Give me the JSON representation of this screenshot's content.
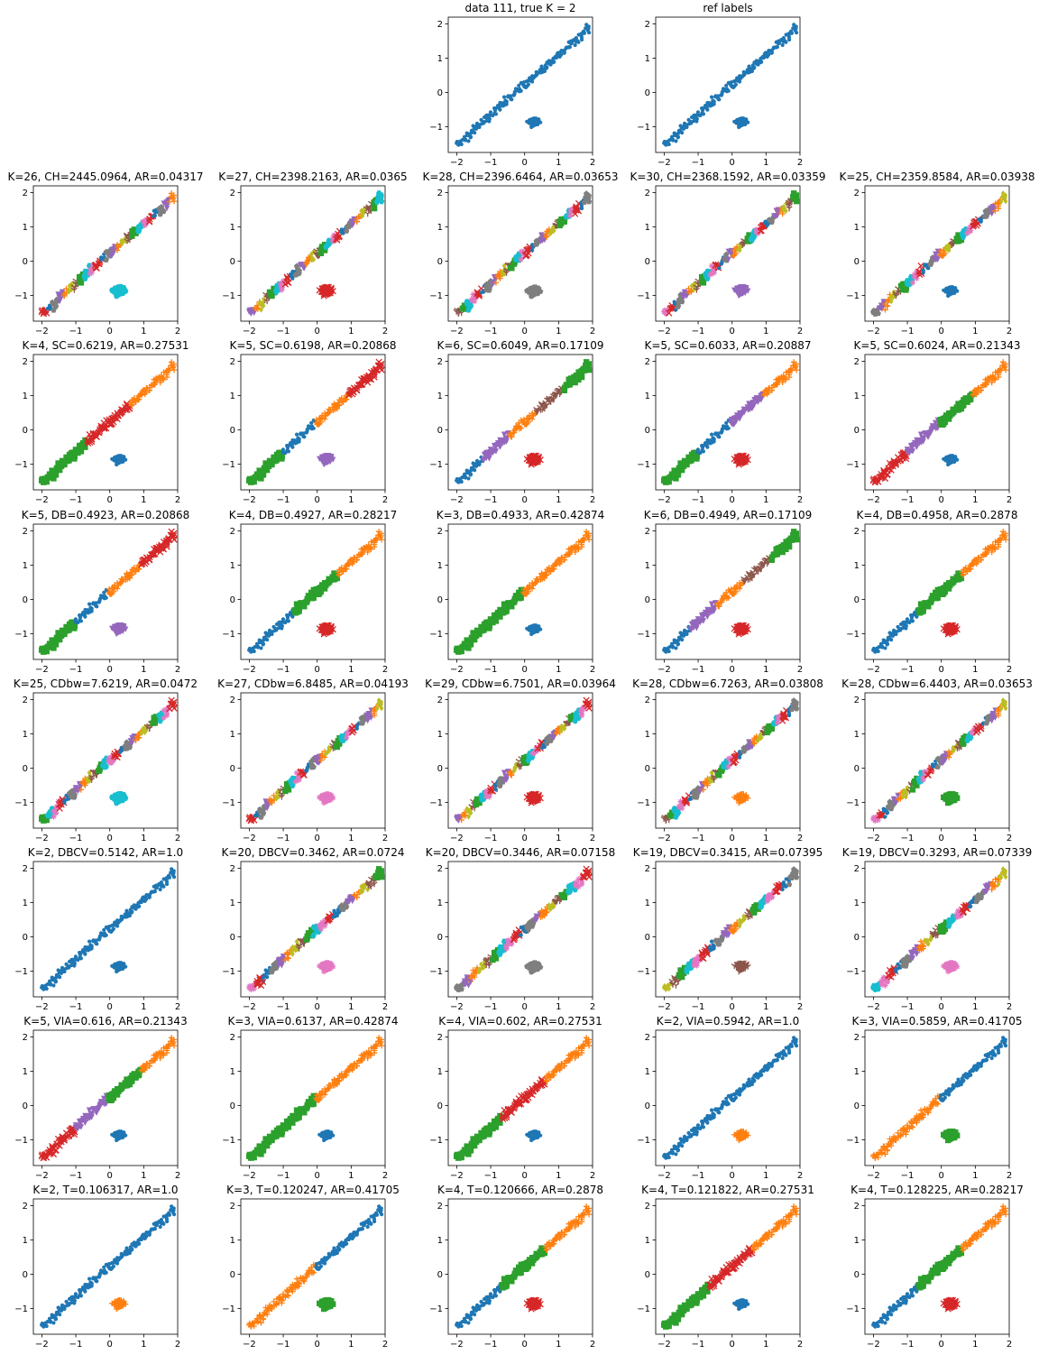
{
  "palette": [
    "#1f77b4",
    "#ff7f0e",
    "#2ca02c",
    "#d62728",
    "#9467bd",
    "#8c564b",
    "#e377c2",
    "#7f7f7f",
    "#bcbd22",
    "#17becf"
  ],
  "markers": [
    "circle",
    "plus",
    "square",
    "x",
    "triangle",
    "tri",
    "star",
    "pentagon",
    "diamond",
    "hexagon"
  ],
  "axes": {
    "xlim": [
      -2.25,
      2.0
    ],
    "ylim": [
      -1.75,
      2.2
    ],
    "xticks": [
      -2,
      -1,
      0,
      1,
      2
    ],
    "yticks": [
      -1,
      0,
      1,
      2
    ],
    "xtick_labels": [
      "−2",
      "−1",
      "0",
      "1",
      "2"
    ],
    "ytick_labels": [
      "−1",
      "0",
      "1",
      "2"
    ]
  },
  "chart_data": [
    {
      "type": "scatter",
      "row": 0,
      "col": 2,
      "title": "data 111, true K = 2",
      "k": 1,
      "mode": "single"
    },
    {
      "type": "scatter",
      "row": 0,
      "col": 3,
      "title": "ref labels",
      "k": 1,
      "mode": "single"
    },
    {
      "type": "scatter",
      "row": 1,
      "col": 0,
      "title": "K=26, CH=2445.0964, AR=0.04317",
      "k": 26,
      "mode": "many"
    },
    {
      "type": "scatter",
      "row": 1,
      "col": 1,
      "title": "K=27, CH=2398.2163, AR=0.0365",
      "k": 27,
      "mode": "many"
    },
    {
      "type": "scatter",
      "row": 1,
      "col": 2,
      "title": "K=28, CH=2396.6464, AR=0.03653",
      "k": 28,
      "mode": "many"
    },
    {
      "type": "scatter",
      "row": 1,
      "col": 3,
      "title": "K=30, CH=2368.1592, AR=0.03359",
      "k": 30,
      "mode": "many"
    },
    {
      "type": "scatter",
      "row": 1,
      "col": 4,
      "title": "K=25, CH=2359.8584, AR=0.03938",
      "k": 25,
      "mode": "many"
    },
    {
      "type": "scatter",
      "row": 2,
      "col": 0,
      "title": "K=4, SC=0.6219, AR=0.27531",
      "k": 4,
      "mode": "seg",
      "segs": [
        2,
        3,
        1
      ],
      "blob": 0
    },
    {
      "type": "scatter",
      "row": 2,
      "col": 1,
      "title": "K=5, SC=0.6198, AR=0.20868",
      "k": 5,
      "mode": "seg",
      "segs": [
        2,
        0,
        1,
        3
      ],
      "blob": 4
    },
    {
      "type": "scatter",
      "row": 2,
      "col": 2,
      "title": "K=6, SC=0.6049, AR=0.17109",
      "k": 6,
      "mode": "seg",
      "segs": [
        0,
        4,
        1,
        5,
        2
      ],
      "blob": 3
    },
    {
      "type": "scatter",
      "row": 2,
      "col": 3,
      "title": "K=5, SC=0.6033, AR=0.20887",
      "k": 5,
      "mode": "seg",
      "segs": [
        2,
        0,
        4,
        1
      ],
      "blob": 3
    },
    {
      "type": "scatter",
      "row": 2,
      "col": 4,
      "title": "K=5, SC=0.6024, AR=0.21343",
      "k": 5,
      "mode": "seg",
      "segs": [
        3,
        4,
        2,
        1
      ],
      "blob": 0
    },
    {
      "type": "scatter",
      "row": 3,
      "col": 0,
      "title": "K=5, DB=0.4923, AR=0.20868",
      "k": 5,
      "mode": "seg",
      "segs": [
        2,
        0,
        1,
        3
      ],
      "blob": 4
    },
    {
      "type": "scatter",
      "row": 3,
      "col": 1,
      "title": "K=4, DB=0.4927, AR=0.28217",
      "k": 4,
      "mode": "seg",
      "segs": [
        0,
        2,
        1
      ],
      "blob": 3
    },
    {
      "type": "scatter",
      "row": 3,
      "col": 2,
      "title": "K=3, DB=0.4933, AR=0.42874",
      "k": 3,
      "mode": "seg",
      "segs": [
        2,
        1
      ],
      "blob": 0
    },
    {
      "type": "scatter",
      "row": 3,
      "col": 3,
      "title": "K=6, DB=0.4949, AR=0.17109",
      "k": 6,
      "mode": "seg",
      "segs": [
        0,
        4,
        1,
        5,
        2
      ],
      "blob": 3
    },
    {
      "type": "scatter",
      "row": 3,
      "col": 4,
      "title": "K=4, DB=0.4958, AR=0.2878",
      "k": 4,
      "mode": "seg",
      "segs": [
        0,
        2,
        1
      ],
      "blob": 3
    },
    {
      "type": "scatter",
      "row": 4,
      "col": 0,
      "title": "K=25, CDbw=7.6219, AR=0.0472",
      "k": 25,
      "mode": "many"
    },
    {
      "type": "scatter",
      "row": 4,
      "col": 1,
      "title": "K=27, CDbw=6.8485, AR=0.04193",
      "k": 27,
      "mode": "many"
    },
    {
      "type": "scatter",
      "row": 4,
      "col": 2,
      "title": "K=29, CDbw=6.7501, AR=0.03964",
      "k": 29,
      "mode": "many"
    },
    {
      "type": "scatter",
      "row": 4,
      "col": 3,
      "title": "K=28, CDbw=6.7263, AR=0.03808",
      "k": 28,
      "mode": "many"
    },
    {
      "type": "scatter",
      "row": 4,
      "col": 4,
      "title": "K=28, CDbw=6.4403, AR=0.03653",
      "k": 28,
      "mode": "many"
    },
    {
      "type": "scatter",
      "row": 5,
      "col": 0,
      "title": "K=2, DBCV=0.5142, AR=1.0",
      "k": 2,
      "mode": "single"
    },
    {
      "type": "scatter",
      "row": 5,
      "col": 1,
      "title": "K=20, DBCV=0.3462, AR=0.0724",
      "k": 20,
      "mode": "many"
    },
    {
      "type": "scatter",
      "row": 5,
      "col": 2,
      "title": "K=20, DBCV=0.3446, AR=0.07158",
      "k": 20,
      "mode": "many"
    },
    {
      "type": "scatter",
      "row": 5,
      "col": 3,
      "title": "K=19, DBCV=0.3415, AR=0.07395",
      "k": 19,
      "mode": "many"
    },
    {
      "type": "scatter",
      "row": 5,
      "col": 4,
      "title": "K=19, DBCV=0.3293, AR=0.07339",
      "k": 19,
      "mode": "many"
    },
    {
      "type": "scatter",
      "row": 6,
      "col": 0,
      "title": "K=5, VIA=0.616, AR=0.21343",
      "k": 5,
      "mode": "seg",
      "segs": [
        3,
        4,
        2,
        1
      ],
      "blob": 0
    },
    {
      "type": "scatter",
      "row": 6,
      "col": 1,
      "title": "K=3, VIA=0.6137, AR=0.42874",
      "k": 3,
      "mode": "seg",
      "segs": [
        2,
        1
      ],
      "blob": 0
    },
    {
      "type": "scatter",
      "row": 6,
      "col": 2,
      "title": "K=4, VIA=0.602, AR=0.27531",
      "k": 4,
      "mode": "seg",
      "segs": [
        2,
        3,
        1
      ],
      "blob": 0
    },
    {
      "type": "scatter",
      "row": 6,
      "col": 3,
      "title": "K=2, VIA=0.5942, AR=1.0",
      "k": 2,
      "mode": "seg",
      "segs": [
        0
      ],
      "blob": 1
    },
    {
      "type": "scatter",
      "row": 6,
      "col": 4,
      "title": "K=3, VIA=0.5859, AR=0.41705",
      "k": 3,
      "mode": "seg",
      "segs": [
        1,
        0
      ],
      "blob": 2
    },
    {
      "type": "scatter",
      "row": 7,
      "col": 0,
      "title": "K=2, T=0.106317, AR=1.0",
      "k": 2,
      "mode": "seg",
      "segs": [
        0
      ],
      "blob": 1
    },
    {
      "type": "scatter",
      "row": 7,
      "col": 1,
      "title": "K=3, T=0.120247, AR=0.41705",
      "k": 3,
      "mode": "seg",
      "segs": [
        1,
        0
      ],
      "blob": 2
    },
    {
      "type": "scatter",
      "row": 7,
      "col": 2,
      "title": "K=4, T=0.120666, AR=0.2878",
      "k": 4,
      "mode": "seg",
      "segs": [
        0,
        2,
        1
      ],
      "blob": 3
    },
    {
      "type": "scatter",
      "row": 7,
      "col": 3,
      "title": "K=4, T=0.121822, AR=0.27531",
      "k": 4,
      "mode": "seg",
      "segs": [
        2,
        3,
        1
      ],
      "blob": 0
    },
    {
      "type": "scatter",
      "row": 7,
      "col": 4,
      "title": "K=4, T=0.128225, AR=0.28217",
      "k": 4,
      "mode": "seg",
      "segs": [
        0,
        2,
        1
      ],
      "blob": 3
    }
  ]
}
